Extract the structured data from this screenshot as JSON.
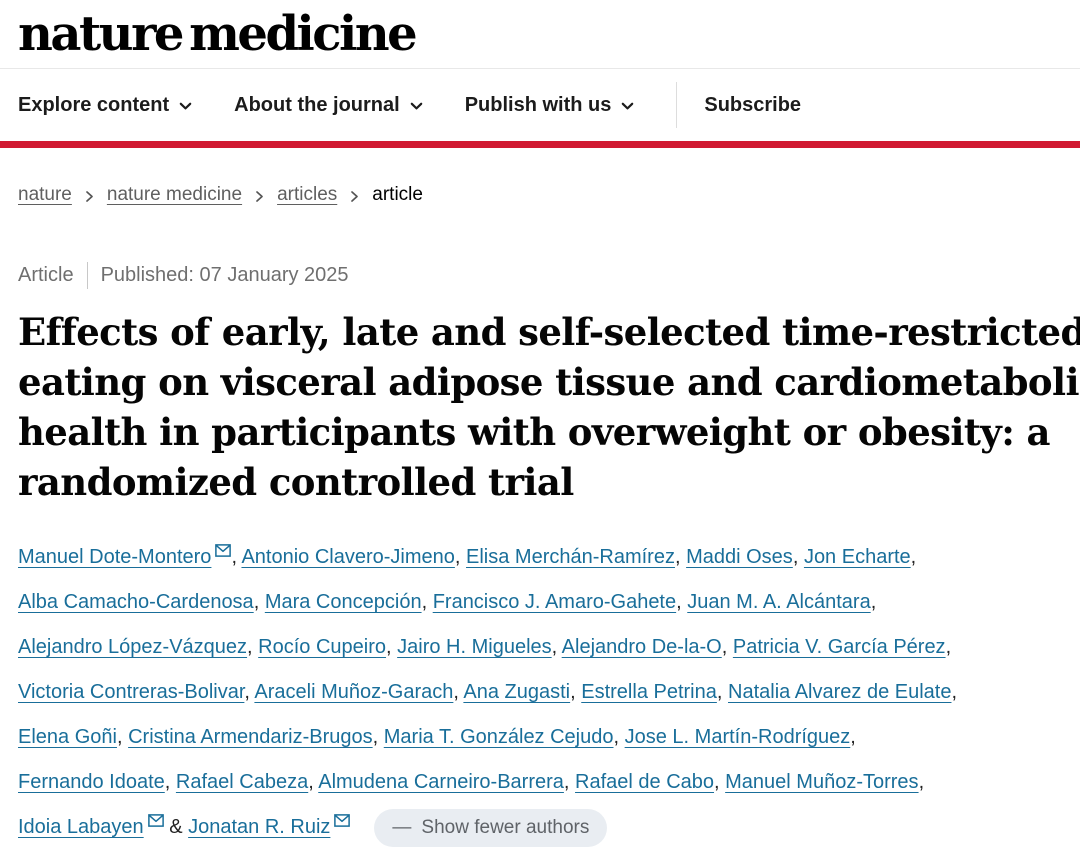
{
  "header": {
    "logo": "nature medicine",
    "nav_items": [
      {
        "label": "Explore content",
        "dropdown": true
      },
      {
        "label": "About the journal",
        "dropdown": true
      },
      {
        "label": "Publish with us",
        "dropdown": true
      }
    ],
    "subscribe_label": "Subscribe"
  },
  "breadcrumb": {
    "items": [
      {
        "label": "nature",
        "current": false
      },
      {
        "label": "nature medicine",
        "current": false
      },
      {
        "label": "articles",
        "current": false
      },
      {
        "label": "article",
        "current": true
      }
    ]
  },
  "article_meta": {
    "type_label": "Article",
    "published": "Published: 07 January 2025"
  },
  "title": "Effects of early, late and self-selected time-restricted eating on visceral adipose tissue and cardiometabolic health in participants with overweight or obesity: a randomized controlled trial",
  "title_lines": [
    "Effects of early, late and self-selected time-restricted",
    "eating on visceral adipose tissue and cardiometabolic",
    "health in participants with overweight or obesity: a",
    "randomized controlled trial"
  ],
  "authors": {
    "list": [
      {
        "name": "Manuel Dote-Montero",
        "email": true
      },
      {
        "name": "Antonio Clavero-Jimeno"
      },
      {
        "name": "Elisa Merchán-Ramírez"
      },
      {
        "name": "Maddi Oses"
      },
      {
        "name": "Jon Echarte"
      },
      {
        "name": "Alba Camacho-Cardenosa"
      },
      {
        "name": "Mara Concepción"
      },
      {
        "name": "Francisco J. Amaro-Gahete"
      },
      {
        "name": "Juan M. A. Alcántara"
      },
      {
        "name": "Alejandro López-Vázquez"
      },
      {
        "name": "Rocío Cupeiro"
      },
      {
        "name": "Jairo H. Migueles"
      },
      {
        "name": "Alejandro De-la-O"
      },
      {
        "name": "Patricia V. García Pérez"
      },
      {
        "name": "Victoria Contreras-Bolivar"
      },
      {
        "name": "Araceli Muñoz-Garach"
      },
      {
        "name": "Ana Zugasti"
      },
      {
        "name": "Estrella Petrina"
      },
      {
        "name": "Natalia Alvarez de Eulate"
      },
      {
        "name": "Elena Goñi"
      },
      {
        "name": "Cristina Armendariz-Brugos"
      },
      {
        "name": "Maria T. González Cejudo"
      },
      {
        "name": "Jose L. Martín-Rodríguez"
      },
      {
        "name": "Fernando Idoate"
      },
      {
        "name": "Rafael Cabeza"
      },
      {
        "name": "Almudena Carneiro-Barrera"
      },
      {
        "name": "Rafael de Cabo"
      },
      {
        "name": "Manuel Muñoz-Torres"
      },
      {
        "name": "Idoia Labayen",
        "email": true
      },
      {
        "name": "Jonatan R. Ruiz",
        "email": true
      }
    ],
    "ampersand": "&",
    "show_fewer": {
      "dash": "—",
      "label": "Show fewer authors"
    }
  },
  "layout": {
    "author_line_breaks_after_index": [
      4,
      8,
      13,
      18,
      22,
      27
    ]
  },
  "colors": {
    "brand_red": "#d11a32",
    "link_blue": "#196e9a",
    "text_dark": "#1f1f1f",
    "meta_gray": "#6f6f6f",
    "pill_bg": "#e9edf2",
    "pill_text": "#5f6368"
  }
}
